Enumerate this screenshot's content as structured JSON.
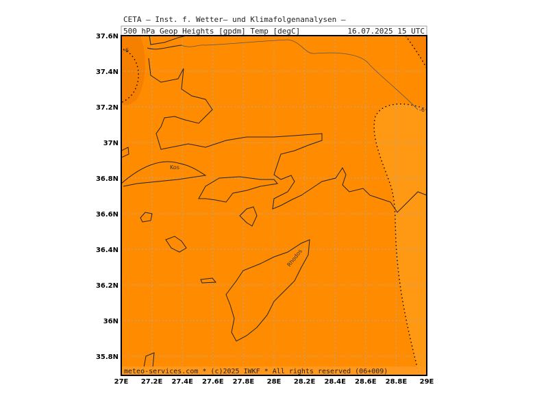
{
  "header": {
    "title": "CETA – Inst. f. Wetter– und Klimafolgenanalysen –",
    "subtitle": "500 hPa Geop Heights [gpdm] Temp [degC]",
    "valid_time": "16.07.2025 15 UTC"
  },
  "axes": {
    "lat_labels": [
      "37.6N",
      "37.4N",
      "37.2N",
      "37N",
      "36.8N",
      "36.6N",
      "36.4N",
      "36.2N",
      "36N",
      "35.8N"
    ],
    "lon_labels": [
      "27E",
      "27.2E",
      "27.4E",
      "27.6E",
      "27.8E",
      "28E",
      "28.2E",
      "28.4E",
      "28.6E",
      "28.8E",
      "29E"
    ]
  },
  "places": [
    "Kos",
    "Rhodos"
  ],
  "contour_labels": [
    "-6",
    "-6"
  ],
  "footer": "meteo-services.com * (c)2025 IWKF * All rights reserved (06+009)"
}
